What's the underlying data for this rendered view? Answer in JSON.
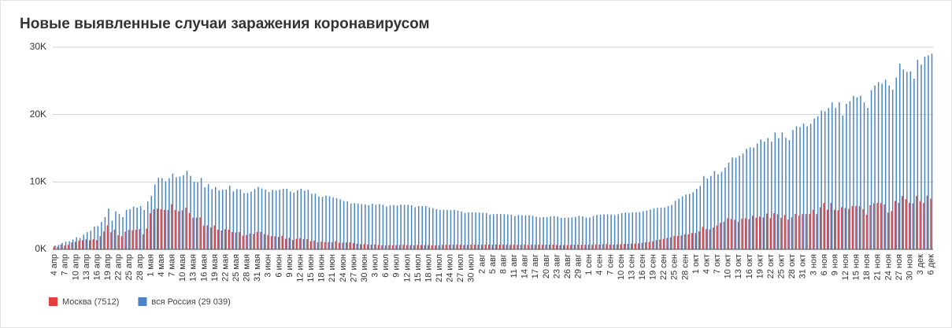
{
  "chart_data": {
    "type": "bar",
    "title": "Новые выявленные случаи заражения коронавирусом",
    "categories": [
      "4 апр",
      null,
      null,
      "7 апр",
      null,
      null,
      "10 апр",
      null,
      null,
      "13 апр",
      null,
      null,
      "16 апр",
      null,
      null,
      "19 апр",
      null,
      null,
      "22 апр",
      null,
      null,
      "25 апр",
      null,
      null,
      "28 апр",
      null,
      null,
      "1 мая",
      null,
      null,
      "4 мая",
      null,
      null,
      "7 мая",
      null,
      null,
      "10 мая",
      null,
      null,
      "13 мая",
      null,
      null,
      "16 мая",
      null,
      null,
      "19 мая",
      null,
      null,
      "22 мая",
      null,
      null,
      "25 мая",
      null,
      null,
      "28 мая",
      null,
      null,
      "31 мая",
      null,
      null,
      "3 июн",
      null,
      null,
      "6 июн",
      null,
      null,
      "9 июн",
      null,
      null,
      "12 июн",
      null,
      null,
      "15 июн",
      null,
      null,
      "18 июн",
      null,
      null,
      "21 июн",
      null,
      null,
      "24 июн",
      null,
      null,
      "27 июн",
      null,
      null,
      "30 июн",
      null,
      null,
      "3 июл",
      null,
      null,
      "6 июл",
      null,
      null,
      "9 июл",
      null,
      null,
      "12 июл",
      null,
      null,
      "15 июл",
      null,
      null,
      "18 июл",
      null,
      null,
      "21 июл",
      null,
      null,
      "24 июл",
      null,
      null,
      "27 июл",
      null,
      null,
      "30 июл",
      null,
      null,
      "2 авг",
      null,
      null,
      "5 авг",
      null,
      null,
      "8 авг",
      null,
      null,
      "11 авг",
      null,
      null,
      "14 авг",
      null,
      null,
      "17 авг",
      null,
      null,
      "20 авг",
      null,
      null,
      "23 авг",
      null,
      null,
      "26 авг",
      null,
      null,
      "29 авг",
      null,
      null,
      "1 сен",
      null,
      null,
      "4 сен",
      null,
      null,
      "7 сен",
      null,
      null,
      "10 сен",
      null,
      null,
      "13 сен",
      null,
      null,
      "16 сен",
      null,
      null,
      "19 сен",
      null,
      null,
      "22 сен",
      null,
      null,
      "25 сен",
      null,
      null,
      "28 сен",
      null,
      null,
      "1 окт",
      null,
      null,
      "4 окт",
      null,
      null,
      "7 окт",
      null,
      null,
      "10 окт",
      null,
      null,
      "13 окт",
      null,
      null,
      "16 окт",
      null,
      null,
      "19 окт",
      null,
      null,
      "22 окт",
      null,
      null,
      "25 окт",
      null,
      null,
      "28 окт",
      null,
      null,
      "31 окт",
      null,
      null,
      "3 ноя",
      null,
      null,
      "6 ноя",
      null,
      null,
      "9 ноя",
      null,
      null,
      "12 ноя",
      null,
      null,
      "15 ноя",
      null,
      null,
      "18 ноя",
      null,
      null,
      "21 ноя",
      null,
      null,
      "24 ноя",
      null,
      null,
      "27 ноя",
      null,
      null,
      "30 ноя",
      null,
      null,
      "3 дек",
      null,
      null,
      "6 дек"
    ],
    "series": [
      {
        "name": "Москва (7512)",
        "color": "#e0413a",
        "values": [
          434,
          387,
          697,
          591,
          660,
          1030,
          1124,
          1306,
          1355,
          1489,
          1355,
          1489,
          1370,
          1959,
          2649,
          3570,
          2548,
          2957,
          2087,
          1958,
          2631,
          2871,
          2845,
          2901,
          2998,
          2220,
          3093,
          5358,
          5948,
          6053,
          5948,
          5858,
          5858,
          6703,
          5846,
          5667,
          5795,
          6169,
          5392,
          4703,
          4712,
          4748,
          3505,
          3570,
          3238,
          3545,
          2913,
          2802,
          2988,
          2913,
          2568,
          2516,
          2560,
          2054,
          2140,
          2367,
          2286,
          2595,
          2595,
          2286,
          2126,
          1951,
          1951,
          1855,
          2001,
          1572,
          1732,
          1382,
          1572,
          1633,
          1545,
          1533,
          1212,
          1305,
          1066,
          1143,
          1080,
          1086,
          1060,
          1229,
          1002,
          995,
          1016,
          1038,
          926,
          826,
          742,
          777,
          709,
          696,
          700,
          652,
          609,
          589,
          617,
          601,
          633,
          656,
          665,
          644,
          620,
          584,
          667,
          658,
          647,
          633,
          596,
          593,
          615,
          678,
          690,
          678,
          687,
          690,
          685,
          652,
          673,
          695,
          696,
          690,
          693,
          698,
          692,
          678,
          707,
          683,
          712,
          707,
          673,
          691,
          688,
          683,
          697,
          659,
          693,
          699,
          684,
          657,
          683,
          694,
          690,
          672,
          633,
          650,
          635,
          657,
          695,
          691,
          674,
          695,
          690,
          693,
          721,
          709,
          757,
          777,
          722,
          709,
          722,
          763,
          792,
          817,
          856,
          855,
          885,
          971,
          1050,
          1095,
          1203,
          1366,
          1440,
          1560,
          1706,
          1793,
          1990,
          2016,
          2056,
          2216,
          2217,
          2424,
          2424,
          2677,
          3327,
          2995,
          2983,
          3229,
          3541,
          3952,
          4082,
          4611,
          4501,
          4390,
          4082,
          4525,
          4610,
          4501,
          4999,
          4696,
          4861,
          4753,
          5312,
          4648,
          5373,
          5224,
          4679,
          5093,
          4432,
          4753,
          5268,
          4988,
          5229,
          5242,
          5261,
          5902,
          5224,
          6253,
          6897,
          5882,
          6897,
          5858,
          5789,
          6253,
          6139,
          6000,
          6448,
          6456,
          6438,
          5942,
          5142,
          6543,
          6826,
          6902,
          6868,
          6682,
          5452,
          5678,
          7168,
          6897,
          7918,
          7449,
          6892,
          6824,
          7918,
          7168,
          6868,
          7993,
          7512
        ]
      },
      {
        "name": "вся Россия (29 039)",
        "color": "#4a86c5",
        "values": [
          582,
          658,
          954,
          1154,
          1175,
          1459,
          1786,
          1667,
          2186,
          2558,
          2774,
          3388,
          3448,
          4070,
          4785,
          6060,
          4268,
          5642,
          5236,
          4774,
          5849,
          5966,
          6361,
          6198,
          6411,
          5841,
          7099,
          7933,
          9623,
          10633,
          10581,
          10102,
          10559,
          11231,
          10699,
          10817,
          11012,
          11656,
          10899,
          10028,
          9974,
          10598,
          9200,
          9709,
          8926,
          9263,
          8764,
          8849,
          8894,
          9434,
          8599,
          8946,
          8915,
          8338,
          8371,
          8572,
          8952,
          9268,
          9035,
          8863,
          8536,
          8831,
          8726,
          8855,
          8984,
          8985,
          8595,
          8404,
          8779,
          8987,
          8706,
          8835,
          8246,
          8248,
          7843,
          7790,
          7972,
          7889,
          7728,
          7600,
          7425,
          7176,
          7113,
          6800,
          6852,
          6791,
          6719,
          6693,
          6556,
          6760,
          6632,
          6736,
          6611,
          6368,
          6562,
          6562,
          6509,
          6635,
          6611,
          6615,
          6537,
          6248,
          6422,
          6428,
          6406,
          6234,
          6109,
          5940,
          5842,
          5862,
          5848,
          5811,
          5871,
          5765,
          5635,
          5395,
          5475,
          5509,
          5482,
          5462,
          5427,
          5394,
          5159,
          5204,
          5267,
          5241,
          5212,
          5189,
          5118,
          4945,
          5102,
          5057,
          5065,
          5061,
          4969,
          4839,
          4748,
          4790,
          4767,
          4870,
          4921,
          4852,
          4676,
          4696,
          4711,
          4741,
          4829,
          4980,
          4897,
          4729,
          4729,
          4952,
          5110,
          5130,
          5205,
          5195,
          5185,
          5099,
          5218,
          5363,
          5449,
          5406,
          5509,
          5488,
          5529,
          5670,
          5762,
          5905,
          6065,
          6148,
          6196,
          6215,
          6431,
          6595,
          7212,
          7523,
          7867,
          8135,
          8232,
          8481,
          8945,
          9412,
          10888,
          10499,
          10888,
          11615,
          11115,
          11493,
          12126,
          12846,
          13634,
          13592,
          13868,
          14231,
          14922,
          15150,
          15099,
          15700,
          16319,
          15982,
          16521,
          15971,
          17340,
          16521,
          17347,
          16550,
          16202,
          17717,
          18283,
          18140,
          18665,
          18257,
          18648,
          19404,
          19768,
          20582,
          20498,
          20977,
          21798,
          20977,
          21798,
          19851,
          21608,
          21983,
          22778,
          22572,
          22778,
          21798,
          20985,
          23610,
          24318,
          24822,
          24581,
          25173,
          24326,
          23675,
          25487,
          27543,
          26683,
          26338,
          26402,
          25345,
          28145,
          27403,
          28585,
          28782,
          29039
        ]
      }
    ],
    "ylim": [
      0,
      30000
    ],
    "yticks": [
      {
        "value": 0,
        "label": "0K"
      },
      {
        "value": 10000,
        "label": "10K"
      },
      {
        "value": 20000,
        "label": "20K"
      },
      {
        "value": 30000,
        "label": "30K"
      }
    ],
    "grid": true
  }
}
